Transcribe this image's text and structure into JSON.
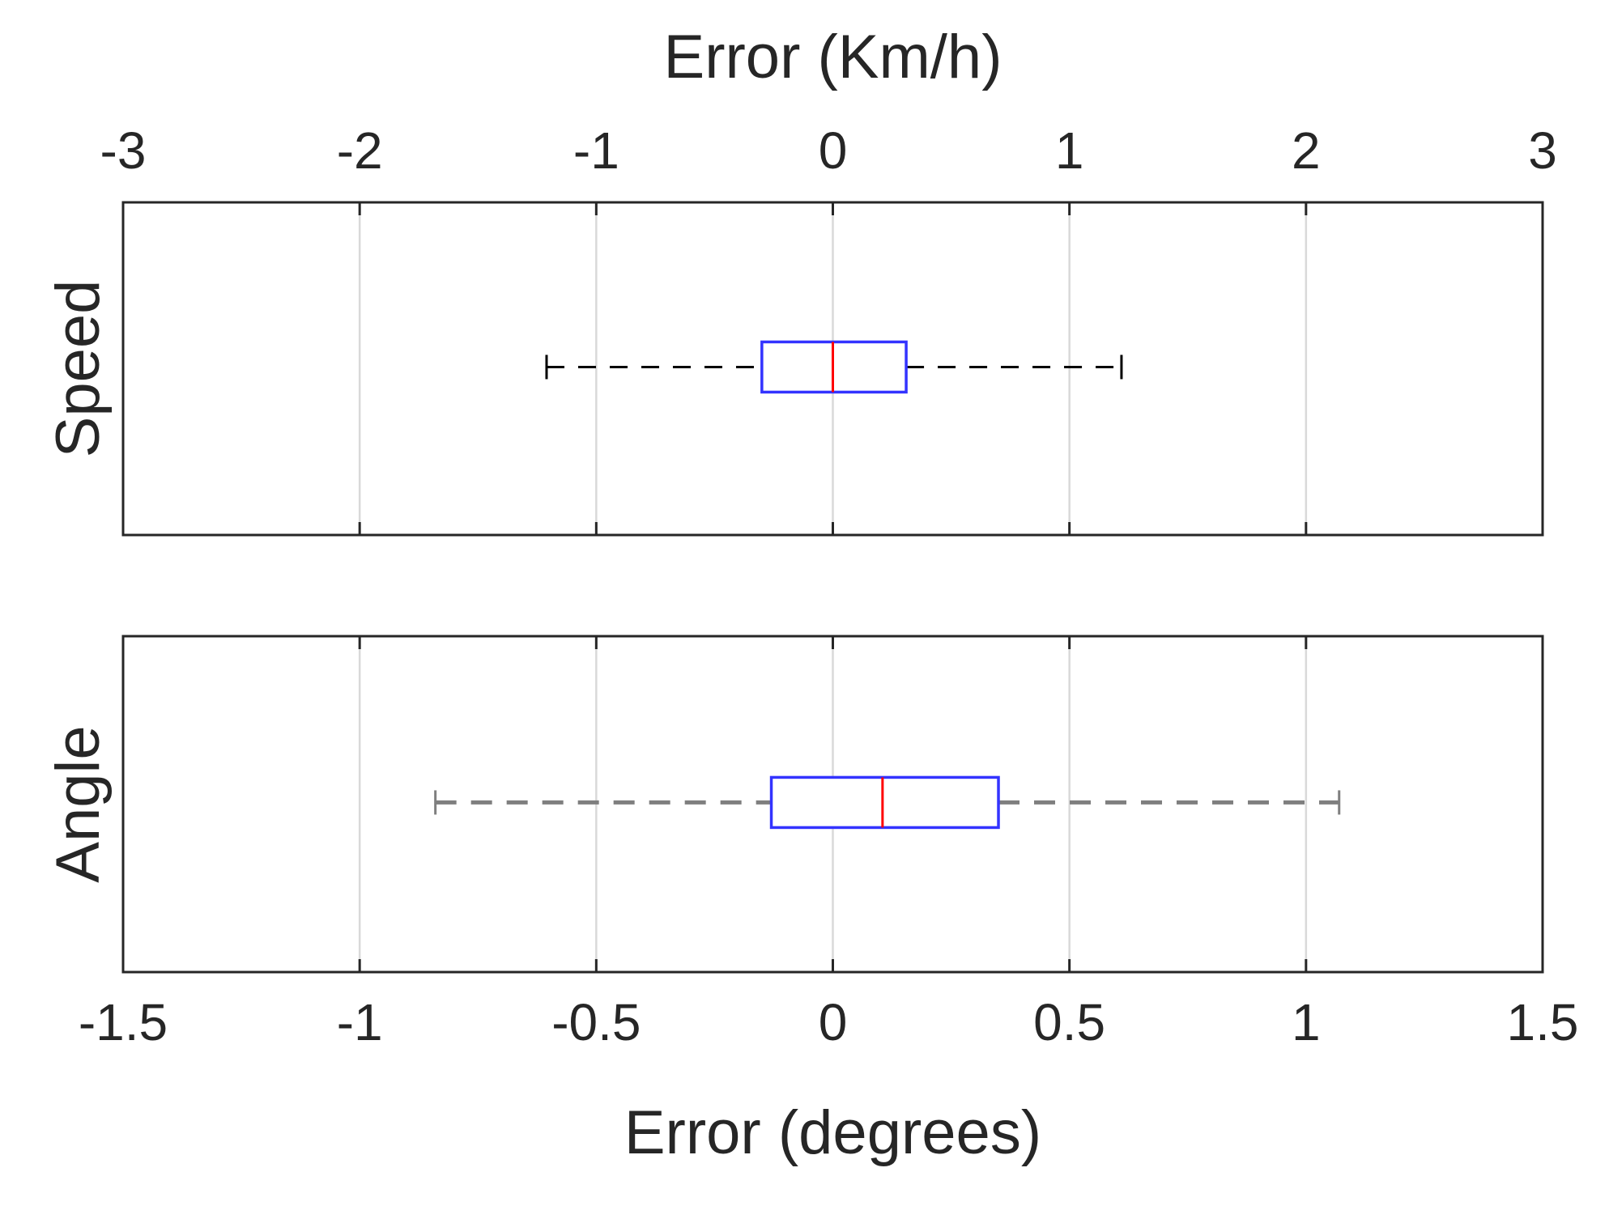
{
  "chart_data": [
    {
      "type": "boxplot",
      "panel": "top",
      "ylabel": "Speed",
      "xlabel": "Error (Km/h)",
      "xaxis_position": "top",
      "xlim": [
        -3,
        3
      ],
      "xticks": [
        -3,
        -2,
        -1,
        0,
        1,
        2,
        3
      ],
      "xtick_labels": [
        "-3",
        "-2",
        "-1",
        "0",
        "1",
        "2",
        "3"
      ],
      "grid": true,
      "box": {
        "whisker_low": -1.21,
        "q1": -0.3,
        "median": 0.0,
        "q3": 0.31,
        "whisker_high": 1.22
      },
      "colors": {
        "box": "#3333ff",
        "median": "#ff0000",
        "whisker": "#000000"
      }
    },
    {
      "type": "boxplot",
      "panel": "bottom",
      "ylabel": "Angle",
      "xlabel": "Error (degrees)",
      "xaxis_position": "bottom",
      "xlim": [
        -1.5,
        1.5
      ],
      "xticks": [
        -1.5,
        -1,
        -0.5,
        0,
        0.5,
        1,
        1.5
      ],
      "xtick_labels": [
        "-1.5",
        "-1",
        "-0.5",
        "0",
        "0.5",
        "1",
        "1.5"
      ],
      "grid": true,
      "box": {
        "whisker_low": -0.84,
        "q1": -0.13,
        "median": 0.105,
        "q3": 0.35,
        "whisker_high": 1.07
      },
      "colors": {
        "box": "#3333ff",
        "median": "#ff0000",
        "whisker": "#7f7f7f"
      }
    }
  ]
}
